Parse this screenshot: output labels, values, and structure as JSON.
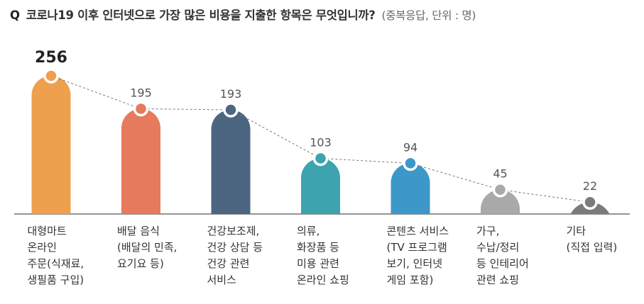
{
  "title": {
    "prefix": "Q",
    "main": "코로나19 이후 인터넷으로 가장 많은 비용을 지출한 항목은 무엇입니까?",
    "sub": "(중복응답, 단위 : 명)"
  },
  "chart_data": {
    "type": "bar",
    "categories": [
      [
        "대형마트",
        "온라인",
        "주문(식재료,",
        "생필품 구입)"
      ],
      [
        "배달 음식",
        "(배달의 민족,",
        "요기요 등)"
      ],
      [
        "건강보조제,",
        "건강 상담 등",
        "건강 관련",
        "서비스"
      ],
      [
        "의류,",
        "화장품 등",
        "미용 관련",
        "온라인 쇼핑"
      ],
      [
        "콘텐츠 서비스",
        "(TV 프로그램",
        "보기, 인터넷",
        "게임 포함)"
      ],
      [
        "가구,",
        "수납/정리",
        "등 인테리어",
        "관련 쇼핑"
      ],
      [
        "기타",
        "(직접 입력)"
      ]
    ],
    "values": [
      256,
      195,
      193,
      103,
      94,
      45,
      22
    ],
    "colors": [
      "#EEA04E",
      "#E57A5C",
      "#4C6580",
      "#3DA3AE",
      "#3D98C9",
      "#A9A9A9",
      "#7B7B7B"
    ],
    "value_labels": [
      "256",
      "195",
      "193",
      "103",
      "94",
      "45",
      "22"
    ],
    "trend_line": "dashed",
    "axis_color": "#555555",
    "xlabel": "",
    "ylabel": ""
  }
}
